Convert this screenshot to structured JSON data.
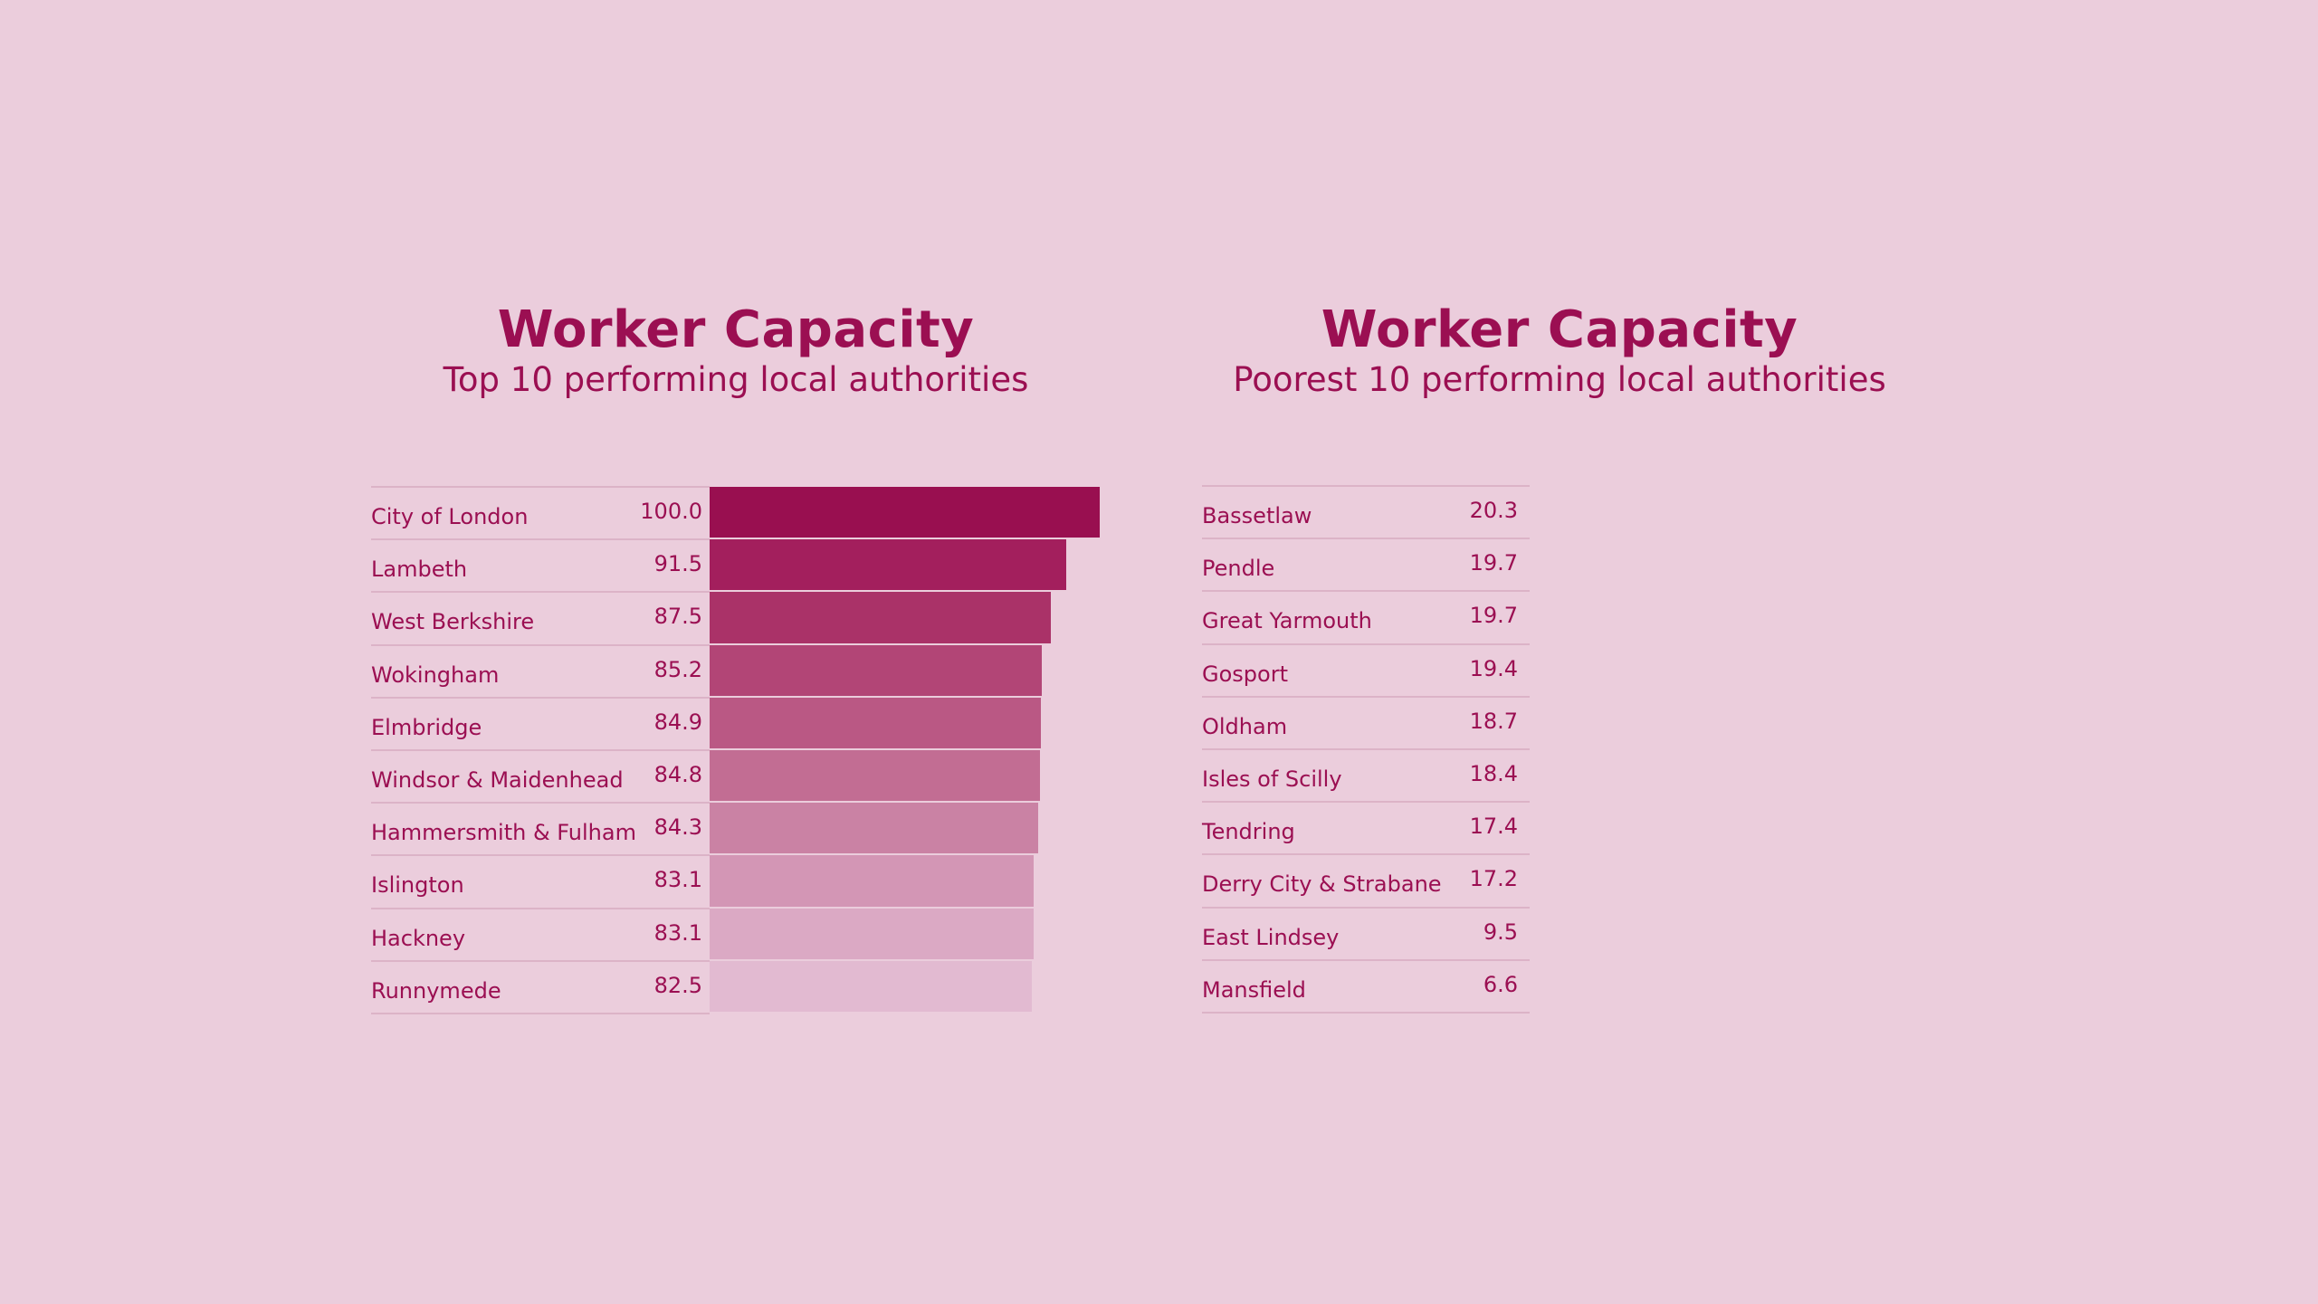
{
  "chart_data": [
    {
      "type": "bar",
      "orientation": "horizontal",
      "title": "Worker Capacity",
      "subtitle": "Top 10 performing local authorities",
      "categories": [
        "City of London",
        "Lambeth",
        "West Berkshire",
        "Wokingham",
        "Elmbridge",
        "Windsor & Maidenhead",
        "Hammersmith & Fulham",
        "Islington",
        "Hackney",
        "Runnymede"
      ],
      "values": [
        "100.0",
        "91.5",
        "87.5",
        "85.2",
        "84.9",
        "84.8",
        "84.3",
        "83.1",
        "83.1",
        "82.5"
      ],
      "xlim": [
        0,
        100
      ],
      "colors": [
        "#990f50",
        "#a31f5d",
        "#aa3268",
        "#b24576",
        "#ba5884",
        "#c26d93",
        "#ca82a4",
        "#d396b5",
        "#dba9c4",
        "#e2bad1"
      ]
    },
    {
      "type": "table",
      "title": "Worker Capacity",
      "subtitle": "Poorest 10 performing local authorities",
      "categories": [
        "Bassetlaw",
        "Pendle",
        "Great Yarmouth",
        "Gosport",
        "Oldham",
        "Isles of Scilly",
        "Tendring",
        "Derry City & Strabane",
        "East Lindsey",
        "Mansfield"
      ],
      "values": [
        "20.3",
        "19.7",
        "19.7",
        "19.4",
        "18.7",
        "18.4",
        "17.4",
        "17.2",
        "9.5",
        "6.6"
      ]
    }
  ]
}
